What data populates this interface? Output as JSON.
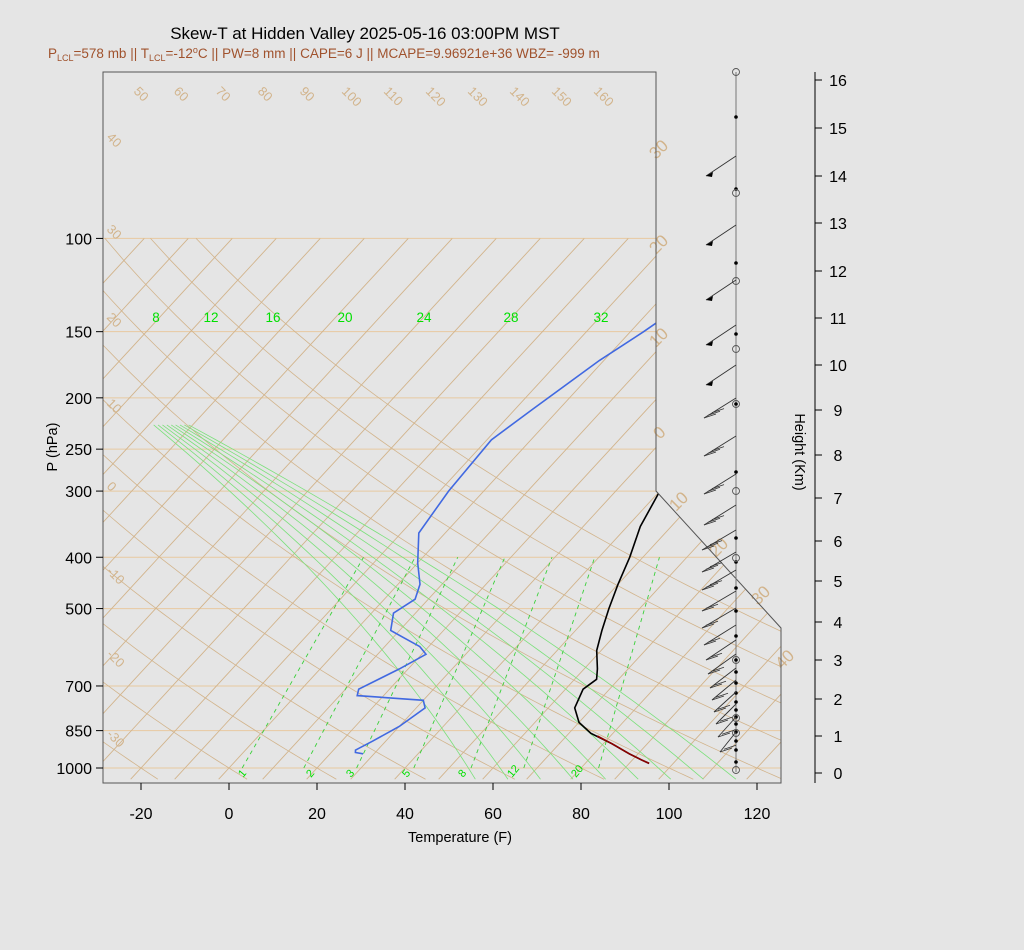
{
  "chart_data": {
    "type": "line",
    "title": "Skew-T at Hidden Valley 2025-05-16 03:00PM MST",
    "subtitle": {
      "plcl_label": "P",
      "plcl_sub": "LCL",
      "plcl_value": "=578 mb || T",
      "tlcl_sub": "LCL",
      "tlcl_value": "=-12",
      "tlcl_deg": "o",
      "rest": "C || PW=8 mm || CAPE=6 J || MCAPE=9.96921e+36 WBZ= -999 m"
    },
    "xlabel": "Temperature (F)",
    "ylabel": "P (hPa)",
    "y2label": "Height (Km)",
    "x_ticks": [
      "-20",
      "0",
      "20",
      "40",
      "60",
      "80",
      "100",
      "120"
    ],
    "p_ticks": [
      "100",
      "150",
      "200",
      "250",
      "300",
      "400",
      "500",
      "700",
      "850",
      "1000"
    ],
    "height_ticks": [
      "0",
      "1",
      "2",
      "3",
      "4",
      "5",
      "6",
      "7",
      "8",
      "9",
      "10",
      "11",
      "12",
      "13",
      "14",
      "15",
      "16"
    ],
    "isotherm_labels_top": [
      "50",
      "60",
      "70",
      "80",
      "90",
      "100",
      "110",
      "120",
      "130",
      "140",
      "150",
      "160"
    ],
    "isotherm_labels_left": [
      "40",
      "30",
      "20",
      "10",
      "0",
      "-10",
      "-20",
      "-30"
    ],
    "isotherm_labels_right": [
      "30",
      "20",
      "10",
      "0",
      "10",
      "20",
      "30",
      "40"
    ],
    "mixing_ratio_labels_mid": [
      "8",
      "12",
      "16",
      "20",
      "24",
      "28",
      "32"
    ],
    "mixing_ratio_labels_bottom": [
      "1",
      "2",
      "3",
      "5",
      "8",
      "12",
      "20"
    ],
    "series": [
      {
        "kind": "temperature",
        "color": "#000000",
        "points": [
          [
            94.5,
            980
          ],
          [
            92,
            965
          ],
          [
            88,
            940
          ],
          [
            82,
            900
          ],
          [
            75,
            860
          ],
          [
            70,
            820
          ],
          [
            66,
            770
          ],
          [
            64,
            710
          ],
          [
            65,
            680
          ],
          [
            63,
            650
          ],
          [
            59,
            600
          ],
          [
            56,
            550
          ],
          [
            53,
            500
          ],
          [
            50,
            450
          ],
          [
            47,
            400
          ],
          [
            43,
            350
          ],
          [
            40,
            300
          ],
          [
            37,
            260
          ],
          [
            34,
            225
          ],
          [
            33,
            210
          ],
          [
            34,
            195
          ],
          [
            36,
            175
          ],
          [
            40,
            160
          ],
          [
            45,
            145
          ],
          [
            55,
            125
          ],
          [
            62,
            110
          ],
          [
            68,
            100
          ]
        ]
      },
      {
        "kind": "parcel",
        "color": "#8b0000",
        "points": [
          [
            94.5,
            980
          ],
          [
            92,
            965
          ],
          [
            88,
            940
          ],
          [
            82,
            900
          ],
          [
            77,
            870
          ]
        ]
      },
      {
        "kind": "dewpoint",
        "color": "#4169e1",
        "points": [
          [
            27.5,
            940
          ],
          [
            25.5,
            935
          ],
          [
            25,
            925
          ],
          [
            27,
            890
          ],
          [
            30,
            835
          ],
          [
            32,
            770
          ],
          [
            30,
            745
          ],
          [
            14,
            730
          ],
          [
            13,
            710
          ],
          [
            18,
            650
          ],
          [
            21,
            610
          ],
          [
            18,
            590
          ],
          [
            8,
            550
          ],
          [
            5,
            510
          ],
          [
            7,
            480
          ],
          [
            5,
            450
          ],
          [
            0,
            410
          ],
          [
            -6,
            360
          ],
          [
            -8,
            300
          ],
          [
            -9,
            240
          ],
          [
            -6,
            210
          ],
          [
            -1,
            170
          ],
          [
            3,
            150
          ],
          [
            7,
            130
          ],
          [
            10,
            115
          ],
          [
            14,
            105
          ],
          [
            18,
            100
          ]
        ]
      }
    ],
    "wind_barbs_note": "barbs plotted along right staff",
    "colors": {
      "background": "#e5e5e5",
      "isotherm": "#d2b48c",
      "isobar": "#e8c9a0",
      "mixing_ratio": "#00e000",
      "temperature": "#000000",
      "dewpoint": "#4169e1",
      "parcel": "#8b0000"
    }
  }
}
